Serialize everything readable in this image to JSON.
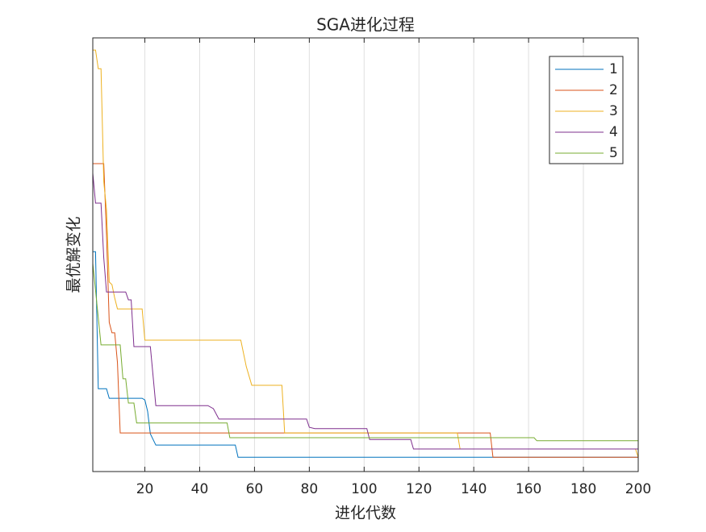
{
  "chart_data": {
    "type": "line",
    "title": "SGA进化过程",
    "x_label": "进化代数",
    "y_label": "最优解变化",
    "xlim": [
      1,
      200
    ],
    "ylim": [
      0,
      100
    ],
    "xticks": [
      20,
      40,
      60,
      80,
      100,
      120,
      140,
      160,
      180,
      200
    ],
    "xgrid": true,
    "legend": "top-right",
    "series": [
      {
        "name": "1",
        "color": "#0072bd",
        "x": [
          1,
          2,
          3,
          6,
          7,
          19,
          20,
          21,
          22,
          24,
          53,
          54,
          200
        ],
        "values": [
          50.7,
          50.7,
          19.1,
          19.1,
          16.9,
          16.9,
          16.5,
          13.9,
          8.7,
          6.1,
          6.1,
          3.3,
          3.3
        ]
      },
      {
        "name": "2",
        "color": "#d95319",
        "x": [
          1,
          5,
          6,
          7,
          8,
          9,
          10,
          11,
          146,
          147,
          200
        ],
        "values": [
          71.0,
          71.0,
          54.8,
          34.4,
          32.0,
          32.0,
          25.1,
          8.9,
          8.9,
          3.3,
          3.3
        ]
      },
      {
        "name": "3",
        "color": "#edb120",
        "x": [
          1,
          2,
          3,
          4,
          5,
          6,
          7,
          8,
          9,
          10,
          19,
          20,
          55,
          57,
          59,
          70,
          71,
          134,
          135,
          199,
          200
        ],
        "values": [
          97.2,
          97.2,
          92.9,
          92.9,
          66.9,
          60.4,
          43.7,
          43.1,
          40.0,
          37.5,
          37.5,
          30.3,
          30.3,
          24.2,
          19.9,
          19.9,
          8.9,
          8.9,
          5.2,
          5.2,
          3.3
        ]
      },
      {
        "name": "4",
        "color": "#7e2f8e",
        "x": [
          1,
          2,
          4,
          5,
          6,
          13,
          14,
          15,
          16,
          22,
          24,
          43,
          45,
          47,
          79,
          80,
          82,
          101,
          102,
          117,
          118,
          200
        ],
        "values": [
          68.8,
          61.9,
          61.9,
          49.3,
          41.4,
          41.4,
          39.6,
          39.6,
          28.8,
          28.8,
          15.2,
          15.2,
          14.5,
          12.1,
          12.1,
          10.2,
          9.9,
          9.9,
          7.4,
          7.4,
          5.2,
          5.2
        ]
      },
      {
        "name": "5",
        "color": "#77ac30",
        "x": [
          1,
          2,
          4,
          11,
          12,
          13,
          14,
          16,
          17,
          50,
          51,
          162,
          163,
          200
        ],
        "values": [
          48.0,
          41.8,
          29.2,
          29.2,
          21.4,
          21.4,
          15.8,
          15.8,
          11.2,
          11.2,
          7.8,
          7.8,
          7.1,
          7.1
        ]
      }
    ]
  }
}
